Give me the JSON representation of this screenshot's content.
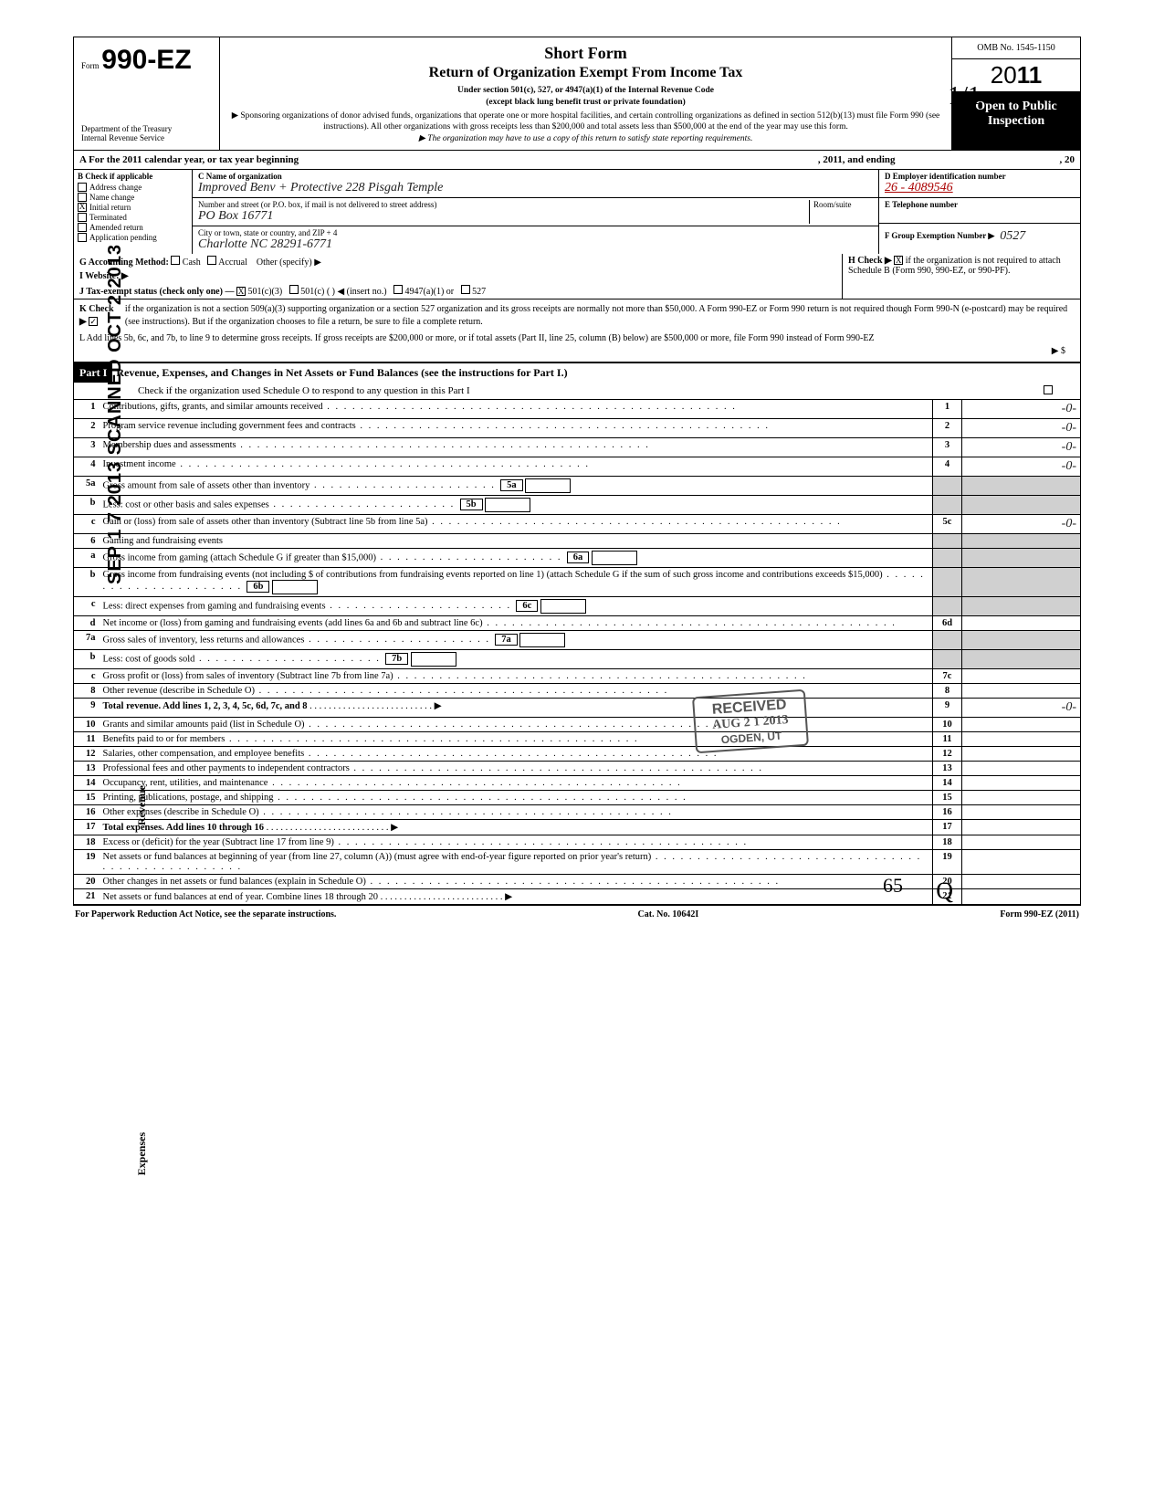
{
  "header": {
    "form_prefix": "Form",
    "form_number": "990-EZ",
    "dept1": "Department of the Treasury",
    "dept2": "Internal Revenue Service",
    "title1": "Short Form",
    "title2": "Return of Organization Exempt From Income Tax",
    "subtitle1": "Under section 501(c), 527, or 4947(a)(1) of the Internal Revenue Code",
    "subtitle2": "(except black lung benefit trust or private foundation)",
    "note1": "▶ Sponsoring organizations of donor advised funds, organizations that operate one or more hospital facilities, and certain controlling organizations as defined in section 512(b)(13) must file Form 990 (see instructions). All other organizations with gross receipts less than $200,000 and total assets less than $500,000 at the end of the year may use this form.",
    "note2": "▶ The organization may have to use a copy of this return to satisfy state reporting requirements.",
    "omb": "OMB No. 1545-1150",
    "year_prefix": "20",
    "year_suffix": "11",
    "open_public1": "Open to Public",
    "open_public2": "Inspection"
  },
  "rowA": {
    "left": "A  For the 2011 calendar year, or tax year beginning",
    "mid": ", 2011, and ending",
    "right": ", 20"
  },
  "colB": {
    "label": "B  Check if applicable",
    "items": [
      "Address change",
      "Name change",
      "Initial return",
      "Terminated",
      "Amended return",
      "Application pending"
    ],
    "checked_index": 2
  },
  "colC": {
    "name_label": "C  Name of organization",
    "name_value": "Improved Benv + Protective  228 Pisgah Temple",
    "street_label": "Number and street (or P.O. box, if mail is not delivered to street address)",
    "street_value": "PO Box 16771",
    "room_label": "Room/suite",
    "city_label": "City or town, state or country, and ZIP + 4",
    "city_value": "Charlotte  NC    28291-6771"
  },
  "colD": {
    "ein_label": "D  Employer identification number",
    "ein_value": "26 - 4089546",
    "tel_label": "E  Telephone number",
    "grp_label": "F  Group Exemption Number ▶",
    "grp_value": "0527"
  },
  "rowG": {
    "g_label": "G  Accounting Method:",
    "g_opts": [
      "Cash",
      "Accrual"
    ],
    "g_other": "Other (specify) ▶",
    "h_label": "H  Check ▶",
    "h_text": "if the organization is not required to attach Schedule B (Form 990, 990-EZ, or 990-PF).",
    "i_label": "I   Website: ▶",
    "j_label": "J  Tax-exempt status (check only one) — ",
    "j_opts": [
      "501(c)(3)",
      "501(c) (    ) ◀ (insert no.)",
      "4947(a)(1) or",
      "527"
    ]
  },
  "kl": {
    "k_check": "K  Check ▶",
    "k_text": "if the organization is not a section 509(a)(3) supporting organization or a section 527 organization and its gross receipts are normally not more than $50,000. A Form 990-EZ or Form 990 return is not required though Form 990-N (e-postcard) may be required (see instructions). But if the organization chooses to file a return, be sure to file a complete return.",
    "l_text": "L  Add lines 5b, 6c, and 7b, to line 9 to determine gross receipts. If gross receipts are $200,000 or more, or if total assets (Part II, line 25, column (B) below) are $500,000 or more, file Form 990 instead of Form 990-EZ",
    "l_arrow": "▶  $"
  },
  "stamp_vertical": "SEP 1 7 2013 SCANNED OCT  2  2013",
  "part1": {
    "bar": "Part I",
    "title": "Revenue, Expenses, and Changes in Net Assets or Fund Balances (see the instructions for Part I.)",
    "sub": "Check if the organization used Schedule O to respond to any question in this Part I"
  },
  "side_labels": {
    "revenue": "Revenue",
    "expenses": "Expenses"
  },
  "lines": [
    {
      "n": "1",
      "t": "Contributions, gifts, grants, and similar amounts received",
      "box": "1",
      "amt": "-0-"
    },
    {
      "n": "2",
      "t": "Program service revenue including government fees and contracts",
      "box": "2",
      "amt": "-0-"
    },
    {
      "n": "3",
      "t": "Membership dues and assessments",
      "box": "3",
      "amt": "-0-"
    },
    {
      "n": "4",
      "t": "Investment income",
      "box": "4",
      "amt": "-0-"
    },
    {
      "n": "5a",
      "t": "Gross amount from sale of assets other than inventory",
      "ibox": "5a"
    },
    {
      "n": "b",
      "t": "Less: cost or other basis and sales expenses",
      "ibox": "5b"
    },
    {
      "n": "c",
      "t": "Gain or (loss) from sale of assets other than inventory (Subtract line 5b from line 5a)",
      "box": "5c",
      "amt": "-0-"
    },
    {
      "n": "6",
      "t": "Gaming and fundraising events"
    },
    {
      "n": "a",
      "t": "Gross income from gaming (attach Schedule G if greater than $15,000)",
      "ibox": "6a"
    },
    {
      "n": "b",
      "t": "Gross income from fundraising events (not including  $                    of contributions from fundraising events reported on line 1) (attach Schedule G if the sum of such gross income and contributions exceeds $15,000)",
      "ibox": "6b"
    },
    {
      "n": "c",
      "t": "Less: direct expenses from gaming and fundraising events",
      "ibox": "6c"
    },
    {
      "n": "d",
      "t": "Net income or (loss) from gaming and fundraising events (add lines 6a and 6b and subtract line 6c)",
      "box": "6d"
    },
    {
      "n": "7a",
      "t": "Gross sales of inventory, less returns and allowances",
      "ibox": "7a"
    },
    {
      "n": "b",
      "t": "Less: cost of goods sold",
      "ibox": "7b"
    },
    {
      "n": "c",
      "t": "Gross profit or (loss) from sales of inventory (Subtract line 7b from line 7a)",
      "box": "7c"
    },
    {
      "n": "8",
      "t": "Other revenue (describe in Schedule O)",
      "box": "8"
    },
    {
      "n": "9",
      "t": "Total revenue. Add lines 1, 2, 3, 4, 5c, 6d, 7c, and 8",
      "box": "9",
      "amt": "-0-",
      "bold": true,
      "arrow": true
    },
    {
      "n": "10",
      "t": "Grants and similar amounts paid (list in Schedule O)",
      "box": "10"
    },
    {
      "n": "11",
      "t": "Benefits paid to or for members",
      "box": "11"
    },
    {
      "n": "12",
      "t": "Salaries, other compensation, and employee benefits",
      "box": "12"
    },
    {
      "n": "13",
      "t": "Professional fees and other payments to independent contractors",
      "box": "13"
    },
    {
      "n": "14",
      "t": "Occupancy, rent, utilities, and maintenance",
      "box": "14"
    },
    {
      "n": "15",
      "t": "Printing, publications, postage, and shipping",
      "box": "15"
    },
    {
      "n": "16",
      "t": "Other expenses (describe in Schedule O)",
      "box": "16"
    },
    {
      "n": "17",
      "t": "Total expenses. Add lines 10 through 16",
      "box": "17",
      "bold": true,
      "arrow": true
    },
    {
      "n": "18",
      "t": "Excess or (deficit) for the year (Subtract line 17 from line 9)",
      "box": "18"
    },
    {
      "n": "19",
      "t": "Net assets or fund balances at beginning of year (from line 27, column (A)) (must agree with end-of-year figure reported on prior year's return)",
      "box": "19"
    },
    {
      "n": "20",
      "t": "Other changes in net assets or fund balances (explain in Schedule O)",
      "box": "20"
    },
    {
      "n": "21",
      "t": "Net assets or fund balances at end of year. Combine lines 18 through 20",
      "box": "21",
      "arrow": true
    }
  ],
  "footer": {
    "left": "For Paperwork Reduction Act Notice, see the separate instructions.",
    "mid": "Cat. No. 10642I",
    "right": "Form 990-EZ (2011)"
  },
  "received": {
    "l1": "RECEIVED",
    "l2": "AUG  2 1 2013",
    "l3": "OGDEN, UT"
  },
  "hand_corner": "1/1",
  "hand_bottom": "65",
  "initial_bottom": "Q"
}
